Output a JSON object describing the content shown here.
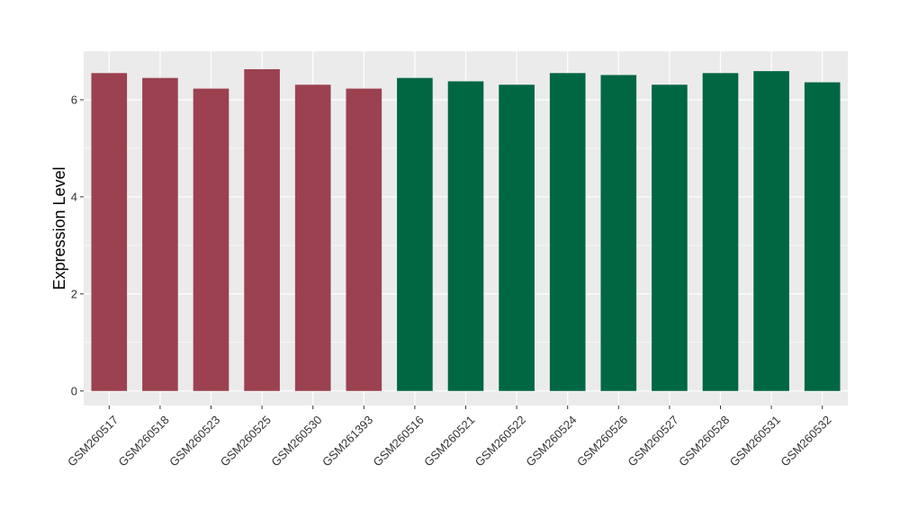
{
  "chart_data": {
    "type": "bar",
    "title": "",
    "xlabel": "",
    "ylabel": "Expression Level",
    "ylim": [
      -0.3,
      7.0
    ],
    "yticks": [
      0,
      2,
      4,
      6
    ],
    "grid": true,
    "categories": [
      "GSM260517",
      "GSM260518",
      "GSM260523",
      "GSM260525",
      "GSM260530",
      "GSM261393",
      "GSM260516",
      "GSM260521",
      "GSM260522",
      "GSM260524",
      "GSM260526",
      "GSM260527",
      "GSM260528",
      "GSM260531",
      "GSM260532"
    ],
    "values": [
      6.55,
      6.45,
      6.23,
      6.63,
      6.31,
      6.23,
      6.45,
      6.38,
      6.31,
      6.55,
      6.51,
      6.31,
      6.55,
      6.59,
      6.36
    ],
    "groups": [
      0,
      0,
      0,
      0,
      0,
      0,
      1,
      1,
      1,
      1,
      1,
      1,
      1,
      1,
      1
    ],
    "group_colors": [
      "#9b4150",
      "#006743"
    ],
    "panel_background": "#ebebeb",
    "grid_color": "#ffffff"
  }
}
